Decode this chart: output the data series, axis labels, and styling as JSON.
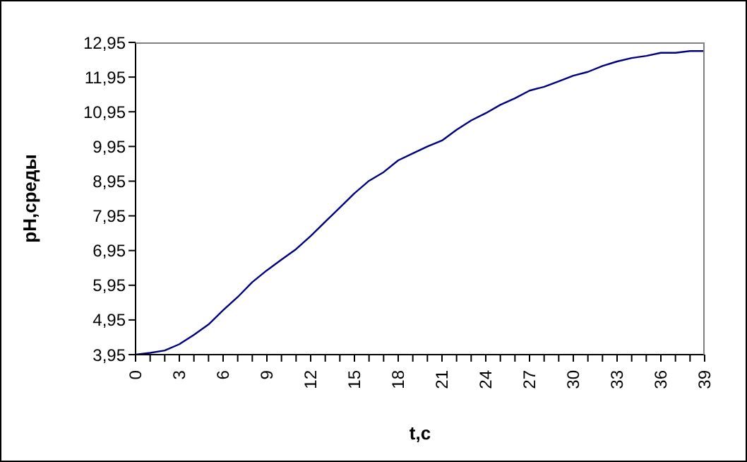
{
  "chart_data": {
    "type": "line",
    "xlabel": "t,c",
    "ylabel": "pH,среды",
    "x": [
      0,
      1,
      2,
      3,
      4,
      5,
      6,
      7,
      8,
      9,
      10,
      11,
      12,
      13,
      14,
      15,
      16,
      17,
      18,
      19,
      20,
      21,
      22,
      23,
      24,
      25,
      26,
      27,
      28,
      29,
      30,
      31,
      32,
      33,
      34,
      35,
      36,
      37,
      38,
      39
    ],
    "series": [
      {
        "color": "#000080",
        "values": [
          3.95,
          4.0,
          4.07,
          4.25,
          4.52,
          4.82,
          5.23,
          5.61,
          6.04,
          6.38,
          6.69,
          6.99,
          7.37,
          7.78,
          8.19,
          8.6,
          8.96,
          9.21,
          9.55,
          9.75,
          9.95,
          10.12,
          10.43,
          10.7,
          10.91,
          11.15,
          11.34,
          11.56,
          11.67,
          11.83,
          11.99,
          12.1,
          12.27,
          12.4,
          12.5,
          12.56,
          12.65,
          12.65,
          12.7,
          12.7
        ]
      }
    ],
    "xlim": [
      0,
      39
    ],
    "xticks": [
      0,
      {
        "value": 1,
        "label": null
      },
      {
        "value": 2,
        "label": null
      },
      3,
      {
        "value": 4,
        "label": null
      },
      {
        "value": 5,
        "label": null
      },
      6,
      {
        "value": 7,
        "label": null
      },
      {
        "value": 8,
        "label": null
      },
      9,
      {
        "value": 10,
        "label": null
      },
      {
        "value": 11,
        "label": null
      },
      12,
      {
        "value": 13,
        "label": null
      },
      {
        "value": 14,
        "label": null
      },
      15,
      {
        "value": 16,
        "label": null
      },
      {
        "value": 17,
        "label": null
      },
      18,
      {
        "value": 19,
        "label": null
      },
      {
        "value": 20,
        "label": null
      },
      21,
      {
        "value": 22,
        "label": null
      },
      {
        "value": 23,
        "label": null
      },
      24,
      {
        "value": 25,
        "label": null
      },
      {
        "value": 26,
        "label": null
      },
      27,
      {
        "value": 28,
        "label": null
      },
      {
        "value": 29,
        "label": null
      },
      30,
      {
        "value": 31,
        "label": null
      },
      {
        "value": 32,
        "label": null
      },
      33,
      {
        "value": 34,
        "label": null
      },
      {
        "value": 35,
        "label": null
      },
      36,
      {
        "value": 37,
        "label": null
      },
      {
        "value": 38,
        "label": null
      },
      39
    ],
    "ylim": [
      3.95,
      12.95
    ],
    "yticks": [
      {
        "value": 3.95,
        "label": "3,95"
      },
      {
        "value": 4.95,
        "label": "4,95"
      },
      {
        "value": 5.95,
        "label": "5,95"
      },
      {
        "value": 6.95,
        "label": "6,95"
      },
      {
        "value": 7.95,
        "label": "7,95"
      },
      {
        "value": 8.95,
        "label": "8,95"
      },
      {
        "value": 9.95,
        "label": "9,95"
      },
      {
        "value": 10.95,
        "label": "10,95"
      },
      {
        "value": 11.95,
        "label": "11,95"
      },
      {
        "value": 12.95,
        "label": "12,95"
      }
    ],
    "grid": false,
    "legend": false,
    "marker": "none",
    "line_style": "solid"
  }
}
